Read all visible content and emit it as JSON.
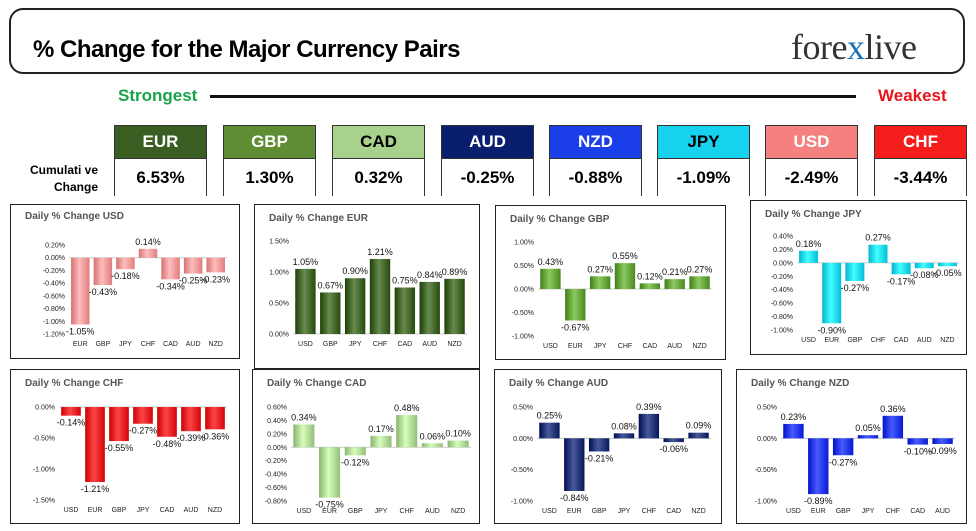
{
  "header": {
    "title": "% Change for the Major Currency Pairs",
    "logo_left": "fore",
    "logo_x": "x",
    "logo_right": "live"
  },
  "ranking": {
    "strongest_label": "Strongest",
    "weakest_label": "Weakest",
    "cumulative_label_line1": "Cumulati ve",
    "cumulative_label_line2": "Change",
    "currencies": [
      {
        "code": "EUR",
        "value": "6.53%",
        "bg": "#3a5e22",
        "fg": "#ffffff"
      },
      {
        "code": "GBP",
        "value": "1.30%",
        "bg": "#5e8d34",
        "fg": "#ffffff"
      },
      {
        "code": "CAD",
        "value": "0.32%",
        "bg": "#a9d18e",
        "fg": "#000000"
      },
      {
        "code": "AUD",
        "value": "-0.25%",
        "bg": "#0a1e6e",
        "fg": "#ffffff"
      },
      {
        "code": "NZD",
        "value": "-0.88%",
        "bg": "#1a3ee8",
        "fg": "#ffffff"
      },
      {
        "code": "JPY",
        "value": "-1.09%",
        "bg": "#16d2ee",
        "fg": "#000000"
      },
      {
        "code": "USD",
        "value": "-2.49%",
        "bg": "#f48080",
        "fg": "#ffffff"
      },
      {
        "code": "CHF",
        "value": "-3.44%",
        "bg": "#f51c1c",
        "fg": "#ffffff"
      }
    ]
  },
  "chart_data": [
    {
      "type": "bar",
      "title": "Daily % Change USD",
      "categories": [
        "EUR",
        "GBP",
        "JPY",
        "CHF",
        "CAD",
        "AUD",
        "NZD"
      ],
      "values": [
        -1.05,
        -0.43,
        -0.18,
        0.14,
        -0.34,
        -0.25,
        -0.23
      ],
      "labels": [
        "-1.05%",
        "-0.43%",
        "-0.18%",
        "0.14%",
        "-0.34%",
        "-0.25%",
        "-0.23%"
      ],
      "ylim": [
        -1.2,
        0.2
      ],
      "yticks": [
        0.2,
        0,
        -0.2,
        -0.4,
        -0.6,
        -0.8,
        -1.0,
        -1.2
      ],
      "ytick_labels": [
        "0.20%",
        "0.00%",
        "-0.20%",
        "-0.40%",
        "-0.60%",
        "-0.80%",
        "-1.00%",
        "-1.20%"
      ],
      "color": "#f49090"
    },
    {
      "type": "bar",
      "title": "Daily % Change EUR",
      "categories": [
        "USD",
        "GBP",
        "JPY",
        "CHF",
        "CAD",
        "AUD",
        "NZD"
      ],
      "values": [
        1.05,
        0.67,
        0.9,
        1.21,
        0.75,
        0.84,
        0.89
      ],
      "labels": [
        "1.05%",
        "0.67%",
        "0.90%",
        "1.21%",
        "0.75%",
        "0.84%",
        "0.89%"
      ],
      "ylim": [
        0,
        1.5
      ],
      "yticks": [
        1.5,
        1.0,
        0.5,
        0
      ],
      "ytick_labels": [
        "1.50%",
        "1.00%",
        "0.50%",
        "0.00%"
      ],
      "color": "#3a5e22"
    },
    {
      "type": "bar",
      "title": "Daily % Change GBP",
      "categories": [
        "USD",
        "EUR",
        "JPY",
        "CHF",
        "CAD",
        "AUD",
        "NZD"
      ],
      "values": [
        0.43,
        -0.67,
        0.27,
        0.55,
        0.12,
        0.21,
        0.27
      ],
      "labels": [
        "0.43%",
        "-0.67%",
        "0.27%",
        "0.55%",
        "0.12%",
        "0.21%",
        "0.27%"
      ],
      "ylim": [
        -1.0,
        1.0
      ],
      "yticks": [
        1.0,
        0.5,
        0,
        -0.5,
        -1.0
      ],
      "ytick_labels": [
        "1.00%",
        "0.50%",
        "0.00%",
        "-0.50%",
        "-1.00%"
      ],
      "color": "#5e9d34"
    },
    {
      "type": "bar",
      "title": "Daily % Change JPY",
      "categories": [
        "USD",
        "EUR",
        "GBP",
        "CHF",
        "CAD",
        "AUD",
        "NZD"
      ],
      "values": [
        0.18,
        -0.9,
        -0.27,
        0.27,
        -0.17,
        -0.08,
        -0.05
      ],
      "labels": [
        "0.18%",
        "-0.90%",
        "-0.27%",
        "0.27%",
        "-0.17%",
        "-0.08%",
        "-0.05%"
      ],
      "ylim": [
        -1.0,
        0.4
      ],
      "yticks": [
        0.4,
        0.2,
        0,
        -0.2,
        -0.4,
        -0.6,
        -0.8,
        -1.0
      ],
      "ytick_labels": [
        "0.40%",
        "0.20%",
        "0.00%",
        "-0.20%",
        "-0.40%",
        "-0.60%",
        "-0.80%",
        "-1.00%"
      ],
      "color": "#16d2ee"
    },
    {
      "type": "bar",
      "title": "Daily % Change CHF",
      "categories": [
        "USD",
        "EUR",
        "GBP",
        "JPY",
        "CAD",
        "AUD",
        "NZD"
      ],
      "values": [
        -0.14,
        -1.21,
        -0.55,
        -0.27,
        -0.48,
        -0.39,
        -0.36
      ],
      "labels": [
        "-0.14%",
        "-1.21%",
        "-0.55%",
        "-0.27%",
        "-0.48%",
        "-0.39%",
        "-0.36%"
      ],
      "ylim": [
        -1.5,
        0
      ],
      "yticks": [
        0,
        -0.5,
        -1.0,
        -1.5
      ],
      "ytick_labels": [
        "0.00%",
        "-0.50%",
        "-1.00%",
        "-1.50%"
      ],
      "color": "#e8181b"
    },
    {
      "type": "bar",
      "title": "Daily % Change CAD",
      "categories": [
        "USD",
        "EUR",
        "GBP",
        "JPY",
        "CHF",
        "AUD",
        "NZD"
      ],
      "values": [
        0.34,
        -0.75,
        -0.12,
        0.17,
        0.48,
        0.06,
        0.1
      ],
      "labels": [
        "0.34%",
        "-0.75%",
        "-0.12%",
        "0.17%",
        "0.48%",
        "0.06%",
        "0.10%"
      ],
      "ylim": [
        -0.8,
        0.6
      ],
      "yticks": [
        0.6,
        0.4,
        0.2,
        0,
        -0.2,
        -0.4,
        -0.6,
        -0.8
      ],
      "ytick_labels": [
        "0.60%",
        "0.40%",
        "0.20%",
        "0.00%",
        "-0.20%",
        "-0.40%",
        "-0.60%",
        "-0.80%"
      ],
      "color": "#a9d18e"
    },
    {
      "type": "bar",
      "title": "Daily % Change AUD",
      "categories": [
        "USD",
        "EUR",
        "GBP",
        "JPY",
        "CHF",
        "CAD",
        "NZD"
      ],
      "values": [
        0.25,
        -0.84,
        -0.21,
        0.08,
        0.39,
        -0.06,
        0.09
      ],
      "labels": [
        "0.25%",
        "-0.84%",
        "-0.21%",
        "0.08%",
        "0.39%",
        "-0.06%",
        "0.09%"
      ],
      "ylim": [
        -1.0,
        0.5
      ],
      "yticks": [
        0.5,
        0,
        -0.5,
        -1.0
      ],
      "ytick_labels": [
        "0.50%",
        "0.00%",
        "-0.50%",
        "-1.00%"
      ],
      "color": "#1a2c6e"
    },
    {
      "type": "bar",
      "title": "Daily % Change NZD",
      "categories": [
        "USD",
        "EUR",
        "GBP",
        "JPY",
        "CHF",
        "CAD",
        "AUD"
      ],
      "values": [
        0.23,
        -0.89,
        -0.27,
        0.05,
        0.36,
        -0.1,
        -0.09
      ],
      "labels": [
        "0.23%",
        "-0.89%",
        "-0.27%",
        "0.05%",
        "0.36%",
        "-0.10%",
        "-0.09%"
      ],
      "ylim": [
        -1.0,
        0.5
      ],
      "yticks": [
        0.5,
        0,
        -0.5,
        -1.0
      ],
      "ytick_labels": [
        "0.50%",
        "0.00%",
        "-0.50%",
        "-1.00%"
      ],
      "color": "#1a2ee8"
    }
  ]
}
